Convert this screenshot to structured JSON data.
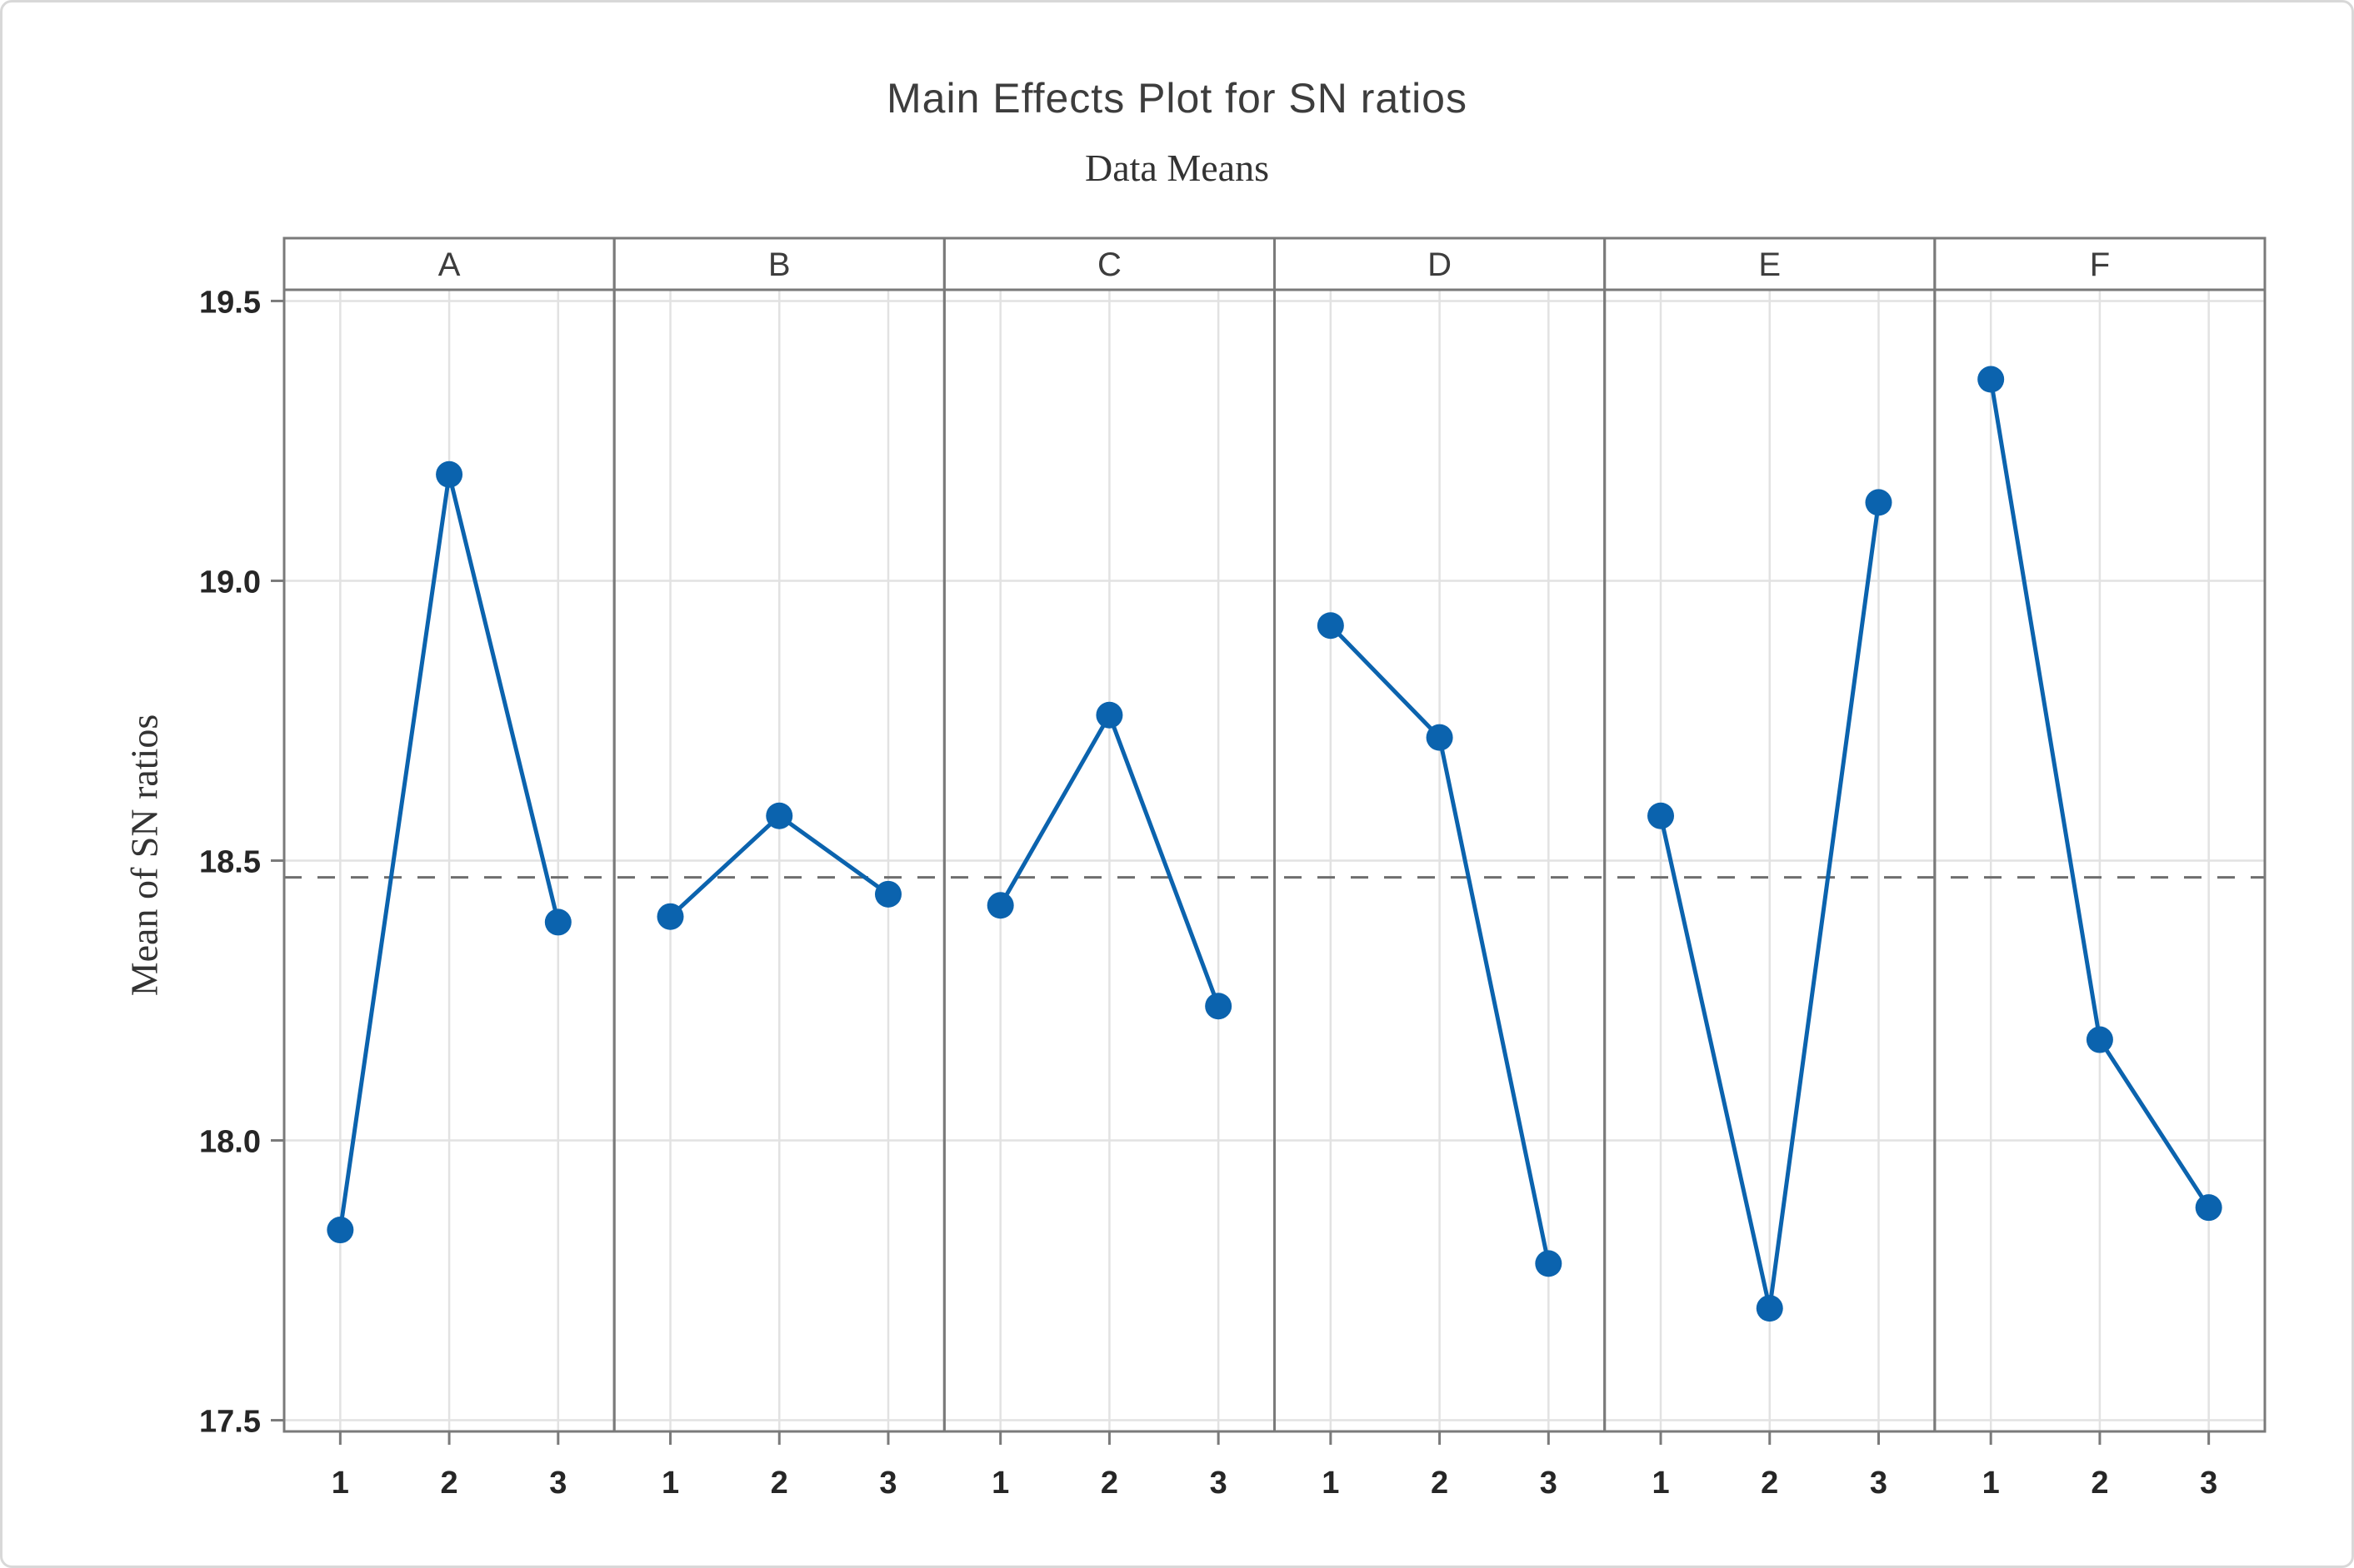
{
  "title": "Main Effects Plot for SN ratios",
  "subtitle": "Data Means",
  "chart_data": {
    "type": "line",
    "title": "Main Effects Plot for SN ratios",
    "subtitle": "Data Means",
    "ylabel": "Mean of SN ratios",
    "panels": [
      "A",
      "B",
      "C",
      "D",
      "E",
      "F"
    ],
    "x_levels": [
      "1",
      "2",
      "3"
    ],
    "series": [
      {
        "name": "A",
        "values": [
          17.84,
          19.19,
          18.39
        ]
      },
      {
        "name": "B",
        "values": [
          18.4,
          18.58,
          18.44
        ]
      },
      {
        "name": "C",
        "values": [
          18.42,
          18.76,
          18.24
        ]
      },
      {
        "name": "D",
        "values": [
          18.92,
          18.72,
          17.78
        ]
      },
      {
        "name": "E",
        "values": [
          18.58,
          17.7,
          19.14
        ]
      },
      {
        "name": "F",
        "values": [
          19.36,
          18.18,
          17.88
        ]
      }
    ],
    "yticks": [
      17.5,
      18.0,
      18.5,
      19.0,
      19.5
    ],
    "ytick_labels": [
      "17.5",
      "18.0",
      "18.5",
      "19.0",
      "19.5"
    ],
    "ylim": [
      17.48,
      19.52
    ],
    "reference_line": 18.47,
    "grid": true,
    "legend": "none",
    "colors": {
      "series": "#0b63ae",
      "reference": "#6e6e6e",
      "grid": "#e2e2e2",
      "frame": "#7a7a7a",
      "panel_text": "#3d3d3d",
      "tick_text": "#262626"
    }
  }
}
